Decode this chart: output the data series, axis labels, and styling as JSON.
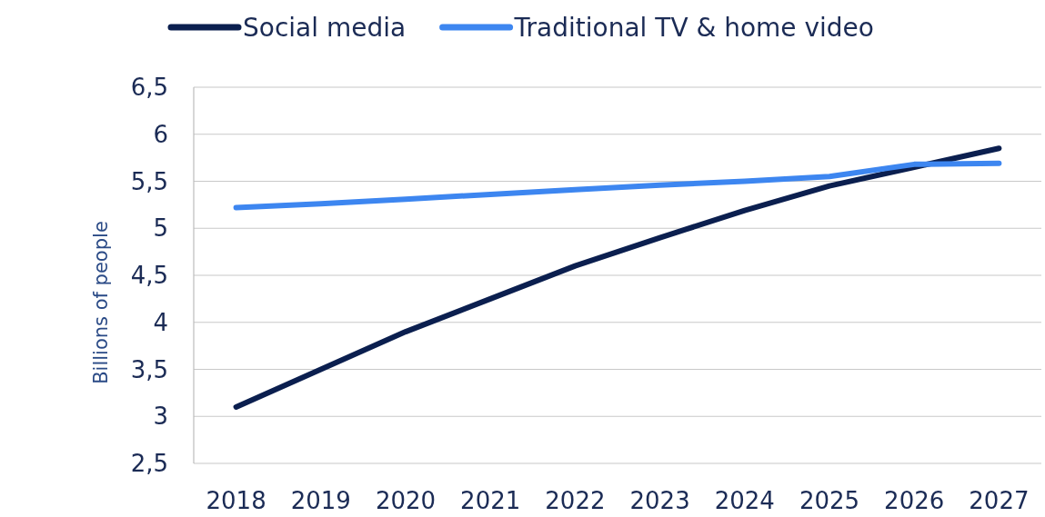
{
  "chart_data": {
    "type": "line",
    "ylabel": "Billions of people",
    "categories": [
      "2018",
      "2019",
      "2020",
      "2021",
      "2022",
      "2023",
      "2024",
      "2025",
      "2026",
      "2027"
    ],
    "series": [
      {
        "name": "Social media",
        "color": "#0b1f4f",
        "values": [
          3.1,
          3.5,
          3.9,
          4.25,
          4.6,
          4.9,
          5.19,
          5.45,
          5.65,
          5.85
        ]
      },
      {
        "name": "Traditional TV & home video",
        "color": "#3d86f0",
        "values": [
          5.22,
          5.26,
          5.31,
          5.36,
          5.41,
          5.46,
          5.5,
          5.55,
          5.68,
          5.69
        ]
      }
    ],
    "ylim": [
      2.5,
      6.5
    ],
    "yticks": [
      {
        "value": 2.5,
        "label": "2,5"
      },
      3,
      {
        "value": 3.5,
        "label": "3,5"
      },
      4,
      {
        "value": 4.5,
        "label": "4,5"
      },
      5,
      {
        "value": 5.5,
        "label": "5,5"
      },
      6,
      {
        "value": 6.5,
        "label": "6,5"
      }
    ],
    "grid": "y",
    "legend": "top left",
    "marker": "none",
    "line_style": "solid"
  }
}
